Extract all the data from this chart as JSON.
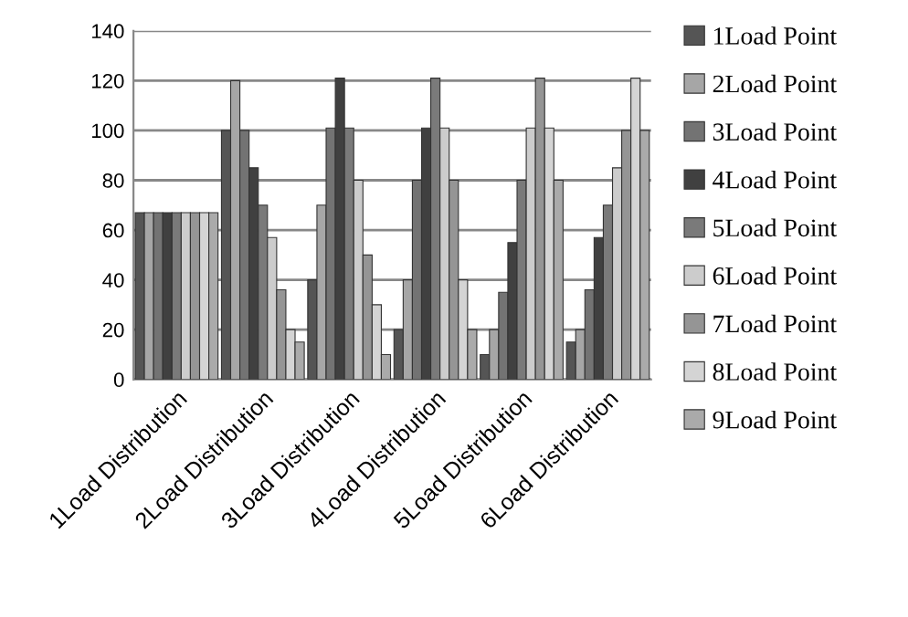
{
  "chart_data": {
    "type": "bar",
    "categories": [
      "1Load Distribution",
      "2Load Distribution",
      "3Load Distribution",
      "4Load Distribution",
      "5Load Distribution",
      "6Load Distribution"
    ],
    "series": [
      {
        "name": "1Load Point",
        "color": "#555555",
        "values": [
          67,
          100,
          40,
          20,
          10,
          15
        ]
      },
      {
        "name": "2Load Point",
        "color": "#a6a6a6",
        "values": [
          67,
          120,
          70,
          40,
          20,
          20
        ]
      },
      {
        "name": "3Load Point",
        "color": "#737373",
        "values": [
          67,
          100,
          101,
          80,
          35,
          36
        ]
      },
      {
        "name": "4Load Point",
        "color": "#404040",
        "values": [
          67,
          85,
          121,
          101,
          55,
          57
        ]
      },
      {
        "name": "5Load Point",
        "color": "#7a7a7a",
        "values": [
          67,
          70,
          101,
          121,
          80,
          70
        ]
      },
      {
        "name": "6Load Point",
        "color": "#cccccc",
        "values": [
          67,
          57,
          80,
          101,
          101,
          85
        ]
      },
      {
        "name": "7Load Point",
        "color": "#959595",
        "values": [
          67,
          36,
          50,
          80,
          121,
          100
        ]
      },
      {
        "name": "8Load Point",
        "color": "#d4d4d4",
        "values": [
          67,
          20,
          30,
          40,
          101,
          121
        ]
      },
      {
        "name": "9Load Point",
        "color": "#aaaaaa",
        "values": [
          67,
          15,
          10,
          20,
          80,
          100
        ]
      }
    ],
    "ylim": [
      0,
      140
    ],
    "yticks": [
      0,
      20,
      40,
      60,
      80,
      100,
      120,
      140
    ],
    "grid": "y",
    "legend": "right"
  }
}
